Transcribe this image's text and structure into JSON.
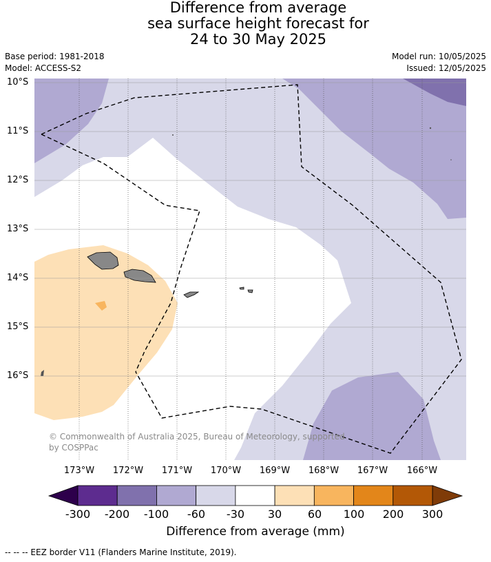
{
  "title": {
    "line1": "Difference from average",
    "line2": "sea surface height forecast for",
    "line3": "24 to 30 May 2025"
  },
  "meta": {
    "base_period": "Base period: 1981-2018",
    "model": "Model: ACCESS-S2",
    "model_run": "Model run: 10/05/2025",
    "issued": "Issued: 12/05/2025"
  },
  "map": {
    "lat_labels": [
      "10°S",
      "11°S",
      "12°S",
      "13°S",
      "14°S",
      "15°S",
      "16°S"
    ],
    "lon_labels": [
      "173°W",
      "172°W",
      "171°W",
      "170°W",
      "169°W",
      "168°W",
      "167°W",
      "166°W"
    ],
    "copyright": "© Commonwealth of Australia 2025, Bureau of Meteorology, supported by COSPPac",
    "colors": {
      "land": "#888888",
      "ocean_neutral": "#ffffff",
      "minus_60_to_30": "#d8d8e9",
      "minus_100_to_60": "#b0a9d2",
      "minus_200_to_100": "#8071ad",
      "plus_30_to_60": "#fde0b6",
      "plus_60_to_100": "#f8b55e"
    }
  },
  "colorbar": {
    "labels": [
      "-300",
      "-200",
      "-100",
      "-60",
      "-30",
      "30",
      "60",
      "100",
      "200",
      "300"
    ],
    "colors": [
      "#5d2c8f",
      "#8071ad",
      "#b0a9d2",
      "#d8d8e9",
      "#ffffff",
      "#fde0b6",
      "#f8b55e",
      "#e3861a",
      "#b35806"
    ],
    "under_color": "#2d004b",
    "over_color": "#7f3b08",
    "title": "Difference from average (mm)"
  },
  "footnote": "-- -- -- EEZ border V11 (Flanders Marine Institute, 2019)."
}
